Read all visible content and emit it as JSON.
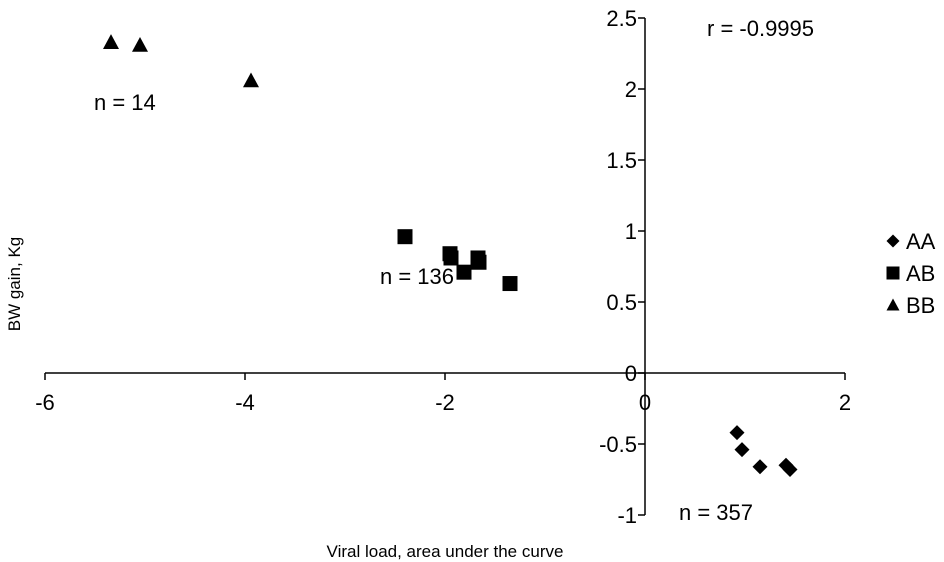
{
  "chart_data": {
    "type": "scatter",
    "title": "",
    "xlabel": "Viral load, area under the curve",
    "ylabel": "BW gain, Kg",
    "xlim": [
      -6,
      2
    ],
    "ylim": [
      -1,
      2.5
    ],
    "x_ticks": [
      "-6",
      "-4",
      "-2",
      "0",
      "2"
    ],
    "y_ticks": [
      "2.5",
      "2",
      "1.5",
      "1",
      "0.5",
      "0",
      "-0.5",
      "-1"
    ],
    "grid": false,
    "legend_position": "right",
    "series": [
      {
        "name": "AA",
        "marker": "diamond",
        "color": "#000000",
        "points": [
          {
            "x": 0.92,
            "y": -0.42
          },
          {
            "x": 0.97,
            "y": -0.54
          },
          {
            "x": 1.15,
            "y": -0.66
          },
          {
            "x": 1.41,
            "y": -0.65
          },
          {
            "x": 1.45,
            "y": -0.68
          }
        ]
      },
      {
        "name": "AB",
        "marker": "square",
        "color": "#000000",
        "points": [
          {
            "x": -2.4,
            "y": 0.96
          },
          {
            "x": -1.95,
            "y": 0.84
          },
          {
            "x": -1.94,
            "y": 0.81
          },
          {
            "x": -1.81,
            "y": 0.71
          },
          {
            "x": -1.67,
            "y": 0.81
          },
          {
            "x": -1.66,
            "y": 0.78
          },
          {
            "x": -1.35,
            "y": 0.63
          }
        ]
      },
      {
        "name": "BB",
        "marker": "triangle",
        "color": "#000000",
        "points": [
          {
            "x": -5.34,
            "y": 2.33
          },
          {
            "x": -5.05,
            "y": 2.31
          },
          {
            "x": -3.94,
            "y": 2.06
          }
        ]
      }
    ],
    "annotations": [
      {
        "text": "r = -0.9995"
      },
      {
        "text": "n = 14"
      },
      {
        "text": "n = 136"
      },
      {
        "text": "n = 357"
      }
    ]
  }
}
